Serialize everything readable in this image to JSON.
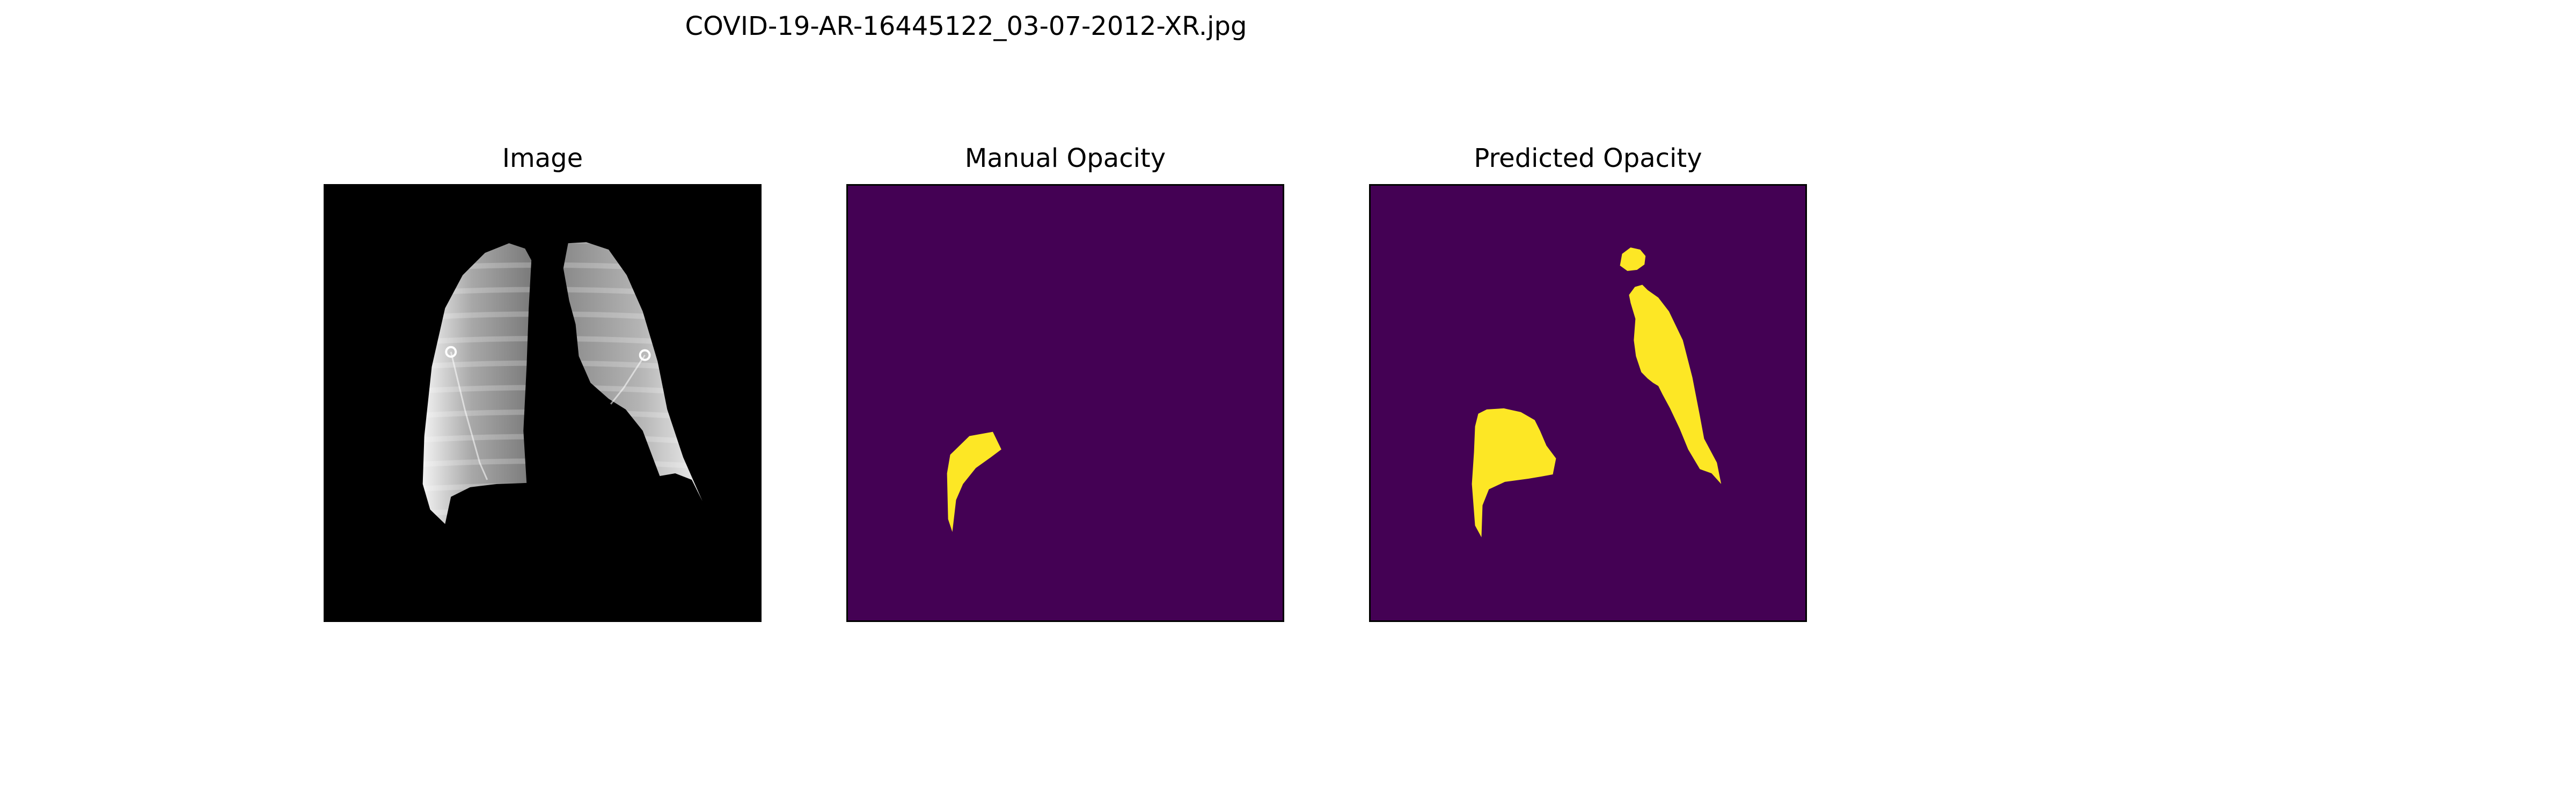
{
  "figure": {
    "title": "COVID-19-AR-16445122_03-07-2012-XR.jpg",
    "panels": [
      {
        "title": "Image",
        "content": "segmented lung x-ray",
        "background": "#000000"
      },
      {
        "title": "Manual Opacity",
        "content": "opacity mask",
        "background": "#440154",
        "mask_color": "#fde725"
      },
      {
        "title": "Predicted Opacity",
        "content": "opacity mask",
        "background": "#440154",
        "mask_color": "#fde725"
      }
    ]
  }
}
